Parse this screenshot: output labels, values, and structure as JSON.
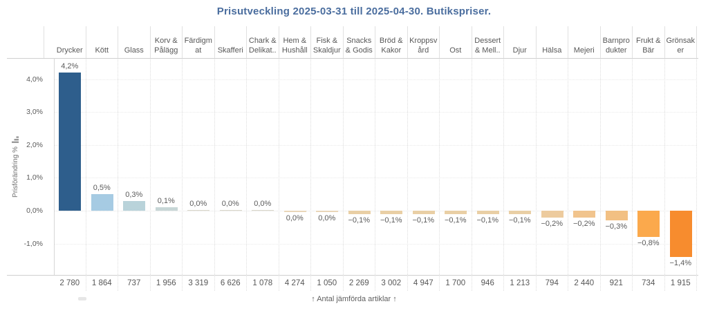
{
  "title": "Prisutveckling 2025-03-31 till 2025-04-30. Butikspriser.",
  "title_color": "#4a6d9e",
  "y_axis": {
    "label": "Prisförändring %",
    "sort_icon": "sort-descending-icon"
  },
  "footer": {
    "caption": "↑ Antal jämförda artiklar ↑"
  },
  "chart_data": {
    "type": "bar",
    "title": "Prisutveckling 2025-03-31 till 2025-04-30. Butikspriser.",
    "xlabel": "Antal jämförda artiklar",
    "ylabel": "Prisförändring %",
    "ylim": [
      -1.6,
      4.6
    ],
    "grid": true,
    "yticks": [
      {
        "value": 4.0,
        "label": "4,0%"
      },
      {
        "value": 3.0,
        "label": "3,0%"
      },
      {
        "value": 2.0,
        "label": "2,0%"
      },
      {
        "value": 1.0,
        "label": "1,0%"
      },
      {
        "value": 0.0,
        "label": "0,0%"
      },
      {
        "value": -1.0,
        "label": "-1,0%"
      }
    ],
    "columns": [
      {
        "category": "Drycker",
        "label_lines": [
          "Drycker"
        ],
        "value": 4.2,
        "value_label": "4,2%",
        "count": "2 780",
        "color": "#2e5e8c",
        "negative": false
      },
      {
        "category": "Kött",
        "label_lines": [
          "Kött"
        ],
        "value": 0.5,
        "value_label": "0,5%",
        "count": "1 864",
        "color": "#a6cbe3",
        "negative": false
      },
      {
        "category": "Glass",
        "label_lines": [
          "Glass"
        ],
        "value": 0.3,
        "value_label": "0,3%",
        "count": "737",
        "color": "#b9d3da",
        "negative": false
      },
      {
        "category": "Korv & Pålägg",
        "label_lines": [
          "Korv &",
          "Pålägg"
        ],
        "value": 0.1,
        "value_label": "0,1%",
        "count": "1 956",
        "color": "#c7d6d6",
        "negative": false
      },
      {
        "category": "Färdigmat",
        "label_lines": [
          "Färdigm",
          "at"
        ],
        "value": 0.0,
        "value_label": "0,0%",
        "count": "3 319",
        "color": "#d8d5c8",
        "negative": false
      },
      {
        "category": "Skafferi",
        "label_lines": [
          "Skafferi"
        ],
        "value": 0.0,
        "value_label": "0,0%",
        "count": "6 626",
        "color": "#d8d5c8",
        "negative": false
      },
      {
        "category": "Chark & Delikat..",
        "label_lines": [
          "Chark &",
          "Delikat.."
        ],
        "value": 0.0,
        "value_label": "0,0%",
        "count": "1 078",
        "color": "#d8d5c8",
        "negative": false
      },
      {
        "category": "Hem & Hushåll",
        "label_lines": [
          "Hem &",
          "Hushåll"
        ],
        "value": 0.0,
        "value_label": "0,0%",
        "count": "4 274",
        "color": "#e9d6b8",
        "negative": true
      },
      {
        "category": "Fisk & Skaldjur",
        "label_lines": [
          "Fisk &",
          "Skaldjur"
        ],
        "value": 0.0,
        "value_label": "0,0%",
        "count": "1 050",
        "color": "#e9d6b8",
        "negative": true
      },
      {
        "category": "Snacks & Godis",
        "label_lines": [
          "Snacks",
          "& Godis"
        ],
        "value": -0.1,
        "value_label": "−0,1%",
        "count": "2 269",
        "color": "#e9cfa5",
        "negative": true
      },
      {
        "category": "Bröd & Kakor",
        "label_lines": [
          "Bröd &",
          "Kakor"
        ],
        "value": -0.1,
        "value_label": "−0,1%",
        "count": "3 002",
        "color": "#e9cfa5",
        "negative": true
      },
      {
        "category": "Kroppsvård",
        "label_lines": [
          "Kroppsv",
          "ård"
        ],
        "value": -0.1,
        "value_label": "−0,1%",
        "count": "4 947",
        "color": "#e9cfa5",
        "negative": true
      },
      {
        "category": "Ost",
        "label_lines": [
          "Ost"
        ],
        "value": -0.1,
        "value_label": "−0,1%",
        "count": "1 700",
        "color": "#e9cfa5",
        "negative": true
      },
      {
        "category": "Dessert & Mell..",
        "label_lines": [
          "Dessert",
          "& Mell.."
        ],
        "value": -0.1,
        "value_label": "−0,1%",
        "count": "946",
        "color": "#e9cfa5",
        "negative": true
      },
      {
        "category": "Djur",
        "label_lines": [
          "Djur"
        ],
        "value": -0.1,
        "value_label": "−0,1%",
        "count": "1 213",
        "color": "#e9cfa5",
        "negative": true
      },
      {
        "category": "Hälsa",
        "label_lines": [
          "Hälsa"
        ],
        "value": -0.2,
        "value_label": "−0,2%",
        "count": "794",
        "color": "#edcb9e",
        "negative": true
      },
      {
        "category": "Mejeri",
        "label_lines": [
          "Mejeri"
        ],
        "value": -0.2,
        "value_label": "−0,2%",
        "count": "2 440",
        "color": "#f1c48d",
        "negative": true
      },
      {
        "category": "Barnprodukter",
        "label_lines": [
          "Barnpro",
          "dukter"
        ],
        "value": -0.3,
        "value_label": "−0,3%",
        "count": "921",
        "color": "#f2c083",
        "negative": true
      },
      {
        "category": "Frukt & Bär",
        "label_lines": [
          "Frukt &",
          "Bär"
        ],
        "value": -0.8,
        "value_label": "−0,8%",
        "count": "734",
        "color": "#fba94c",
        "negative": true
      },
      {
        "category": "Grönsaker",
        "label_lines": [
          "Grönsak",
          "er"
        ],
        "value": -1.4,
        "value_label": "−1,4%",
        "count": "1 915",
        "color": "#f78c2e",
        "negative": true
      }
    ]
  }
}
